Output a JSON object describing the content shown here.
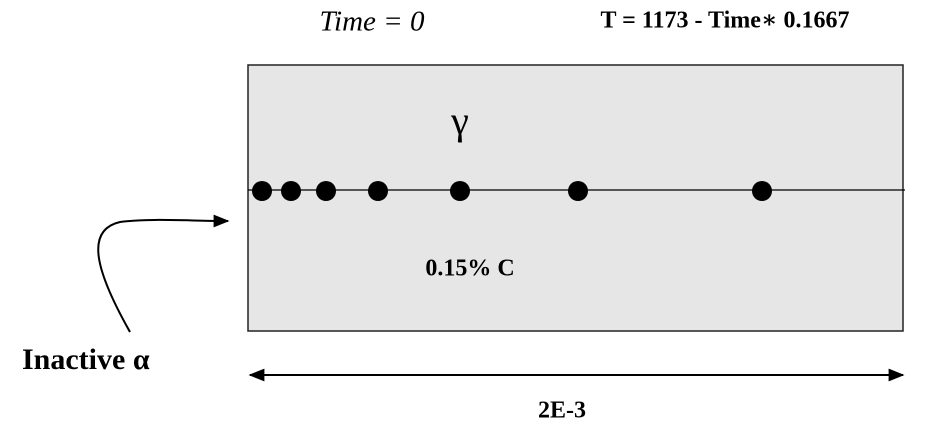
{
  "header": {
    "time_label": "Time = 0",
    "temperature_formula": "T = 1173 - Time∗ 0.1667"
  },
  "domain": {
    "phase": "γ",
    "composition": "0.15% C",
    "width": "2E-3"
  },
  "boundary": {
    "label": "Inactive α"
  }
}
